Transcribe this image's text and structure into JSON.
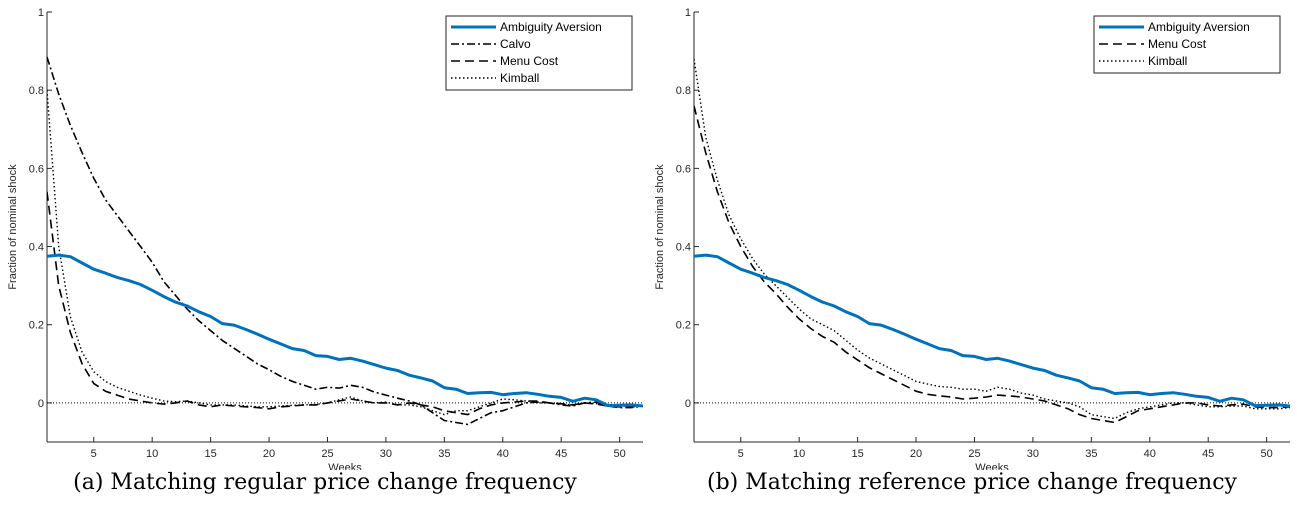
{
  "chart_data": [
    {
      "type": "line",
      "caption": "(a) Matching regular price change frequency",
      "xlabel": "Weeks",
      "ylabel": "Fraction of nominal shock",
      "xlim": [
        1,
        52
      ],
      "ylim": [
        -0.1,
        1
      ],
      "xticks": [
        5,
        10,
        15,
        20,
        25,
        30,
        35,
        40,
        45,
        50
      ],
      "yticks": [
        0,
        0.2,
        0.4,
        0.6,
        0.8,
        1
      ],
      "ytick_labels": [
        "0",
        "0.2",
        "0.4",
        "0.6",
        "0.8",
        "1"
      ],
      "zero_line": true,
      "legend_position": "top-right",
      "series": [
        {
          "name": "Ambiguity Aversion",
          "style": "solid",
          "color": "#0072BD",
          "x": [
            1,
            2,
            3,
            4,
            5,
            6,
            7,
            8,
            9,
            10,
            11,
            12,
            13,
            14,
            15,
            16,
            17,
            18,
            19,
            20,
            21,
            22,
            23,
            24,
            25,
            26,
            27,
            28,
            29,
            30,
            31,
            32,
            33,
            34,
            35,
            36,
            37,
            38,
            39,
            40,
            41,
            42,
            43,
            44,
            45,
            46,
            47,
            48,
            49,
            50,
            51,
            52
          ],
          "values": [
            0.375,
            0.378,
            0.374,
            0.358,
            0.342,
            0.332,
            0.321,
            0.313,
            0.303,
            0.288,
            0.272,
            0.258,
            0.248,
            0.233,
            0.221,
            0.203,
            0.199,
            0.188,
            0.176,
            0.163,
            0.151,
            0.139,
            0.134,
            0.121,
            0.119,
            0.111,
            0.114,
            0.107,
            0.098,
            0.089,
            0.083,
            0.071,
            0.064,
            0.056,
            0.039,
            0.035,
            0.024,
            0.026,
            0.027,
            0.021,
            0.024,
            0.026,
            0.022,
            0.017,
            0.014,
            0.004,
            0.012,
            0.008,
            -0.007,
            -0.006,
            -0.005,
            -0.008
          ]
        },
        {
          "name": "Calvo",
          "style": "dashdot",
          "color": "#000000",
          "x": [
            1,
            2,
            3,
            4,
            5,
            6,
            7,
            8,
            9,
            10,
            11,
            12,
            13,
            14,
            15,
            16,
            17,
            18,
            19,
            20,
            21,
            22,
            23,
            24,
            25,
            26,
            27,
            28,
            29,
            30,
            31,
            32,
            33,
            34,
            35,
            36,
            37,
            38,
            39,
            40,
            41,
            42,
            43,
            44,
            45,
            46,
            47,
            48,
            49,
            50,
            51,
            52
          ],
          "values": [
            0.885,
            0.79,
            0.71,
            0.64,
            0.575,
            0.52,
            0.48,
            0.44,
            0.4,
            0.36,
            0.31,
            0.275,
            0.24,
            0.21,
            0.185,
            0.16,
            0.14,
            0.12,
            0.1,
            0.085,
            0.068,
            0.055,
            0.045,
            0.035,
            0.04,
            0.038,
            0.045,
            0.04,
            0.028,
            0.02,
            0.012,
            0.005,
            -0.005,
            -0.025,
            -0.045,
            -0.05,
            -0.055,
            -0.04,
            -0.025,
            -0.02,
            -0.01,
            0.0,
            0.002,
            0.0,
            -0.005,
            -0.008,
            0.0,
            0.002,
            -0.008,
            -0.012,
            -0.012,
            -0.008
          ]
        },
        {
          "name": "Menu Cost",
          "style": "dashed",
          "color": "#000000",
          "x": [
            1,
            2,
            3,
            4,
            5,
            6,
            7,
            8,
            9,
            10,
            11,
            12,
            13,
            14,
            15,
            16,
            17,
            18,
            19,
            20,
            21,
            22,
            23,
            24,
            25,
            26,
            27,
            28,
            29,
            30,
            31,
            32,
            33,
            34,
            35,
            36,
            37,
            38,
            39,
            40,
            41,
            42,
            43,
            44,
            45,
            46,
            47,
            48,
            49,
            50,
            51,
            52
          ],
          "values": [
            0.54,
            0.3,
            0.18,
            0.1,
            0.05,
            0.03,
            0.02,
            0.01,
            0.005,
            0.0,
            -0.003,
            0.0,
            0.005,
            -0.005,
            -0.01,
            -0.005,
            -0.008,
            -0.01,
            -0.012,
            -0.015,
            -0.01,
            -0.008,
            -0.005,
            -0.005,
            0.0,
            0.005,
            0.01,
            0.005,
            0.0,
            0.0,
            -0.005,
            0.0,
            -0.005,
            -0.01,
            -0.02,
            -0.025,
            -0.03,
            -0.015,
            -0.005,
            0.0,
            0.002,
            0.005,
            0.005,
            0.0,
            -0.002,
            -0.005,
            0.0,
            -0.003,
            -0.008,
            -0.01,
            -0.01,
            -0.008
          ]
        },
        {
          "name": "Kimball",
          "style": "dotted",
          "color": "#000000",
          "x": [
            1,
            2,
            3,
            4,
            5,
            6,
            7,
            8,
            9,
            10,
            11,
            12,
            13,
            14,
            15,
            16,
            17,
            18,
            19,
            20,
            21,
            22,
            23,
            24,
            25,
            26,
            27,
            28,
            29,
            30,
            31,
            32,
            33,
            34,
            35,
            36,
            37,
            38,
            39,
            40,
            41,
            42,
            43,
            44,
            45,
            46,
            47,
            48,
            49,
            50,
            51,
            52
          ],
          "values": [
            0.8,
            0.4,
            0.22,
            0.13,
            0.08,
            0.055,
            0.04,
            0.03,
            0.02,
            0.012,
            0.005,
            0.003,
            0.005,
            0.0,
            -0.005,
            -0.005,
            -0.005,
            -0.008,
            -0.01,
            -0.01,
            -0.008,
            -0.006,
            -0.005,
            -0.004,
            0.0,
            0.008,
            0.015,
            0.005,
            0.0,
            0.002,
            -0.005,
            -0.005,
            -0.01,
            -0.02,
            -0.03,
            -0.02,
            -0.02,
            -0.01,
            0.0,
            0.01,
            0.008,
            0.005,
            0.0,
            0.0,
            -0.003,
            -0.005,
            0.0,
            -0.002,
            -0.006,
            -0.008,
            -0.008,
            -0.005
          ]
        }
      ]
    },
    {
      "type": "line",
      "caption": "(b) Matching reference price change frequency",
      "xlabel": "Weeks",
      "ylabel": "Fraction of nominal shock",
      "xlim": [
        1,
        52
      ],
      "ylim": [
        -0.1,
        1
      ],
      "xticks": [
        5,
        10,
        15,
        20,
        25,
        30,
        35,
        40,
        45,
        50
      ],
      "yticks": [
        0,
        0.2,
        0.4,
        0.6,
        0.8,
        1
      ],
      "ytick_labels": [
        "0",
        "0.2",
        "0.4",
        "0.6",
        "0.8",
        "1"
      ],
      "zero_line": true,
      "legend_position": "top-right",
      "series": [
        {
          "name": "Ambiguity Aversion",
          "style": "solid",
          "color": "#0072BD",
          "x": [
            1,
            2,
            3,
            4,
            5,
            6,
            7,
            8,
            9,
            10,
            11,
            12,
            13,
            14,
            15,
            16,
            17,
            18,
            19,
            20,
            21,
            22,
            23,
            24,
            25,
            26,
            27,
            28,
            29,
            30,
            31,
            32,
            33,
            34,
            35,
            36,
            37,
            38,
            39,
            40,
            41,
            42,
            43,
            44,
            45,
            46,
            47,
            48,
            49,
            50,
            51,
            52
          ],
          "values": [
            0.375,
            0.378,
            0.374,
            0.358,
            0.342,
            0.332,
            0.321,
            0.313,
            0.303,
            0.288,
            0.272,
            0.258,
            0.248,
            0.233,
            0.221,
            0.203,
            0.199,
            0.188,
            0.176,
            0.163,
            0.151,
            0.139,
            0.134,
            0.121,
            0.119,
            0.111,
            0.114,
            0.107,
            0.098,
            0.089,
            0.083,
            0.071,
            0.064,
            0.056,
            0.039,
            0.035,
            0.024,
            0.026,
            0.027,
            0.021,
            0.024,
            0.026,
            0.022,
            0.017,
            0.014,
            0.004,
            0.012,
            0.008,
            -0.007,
            -0.006,
            -0.005,
            -0.008
          ]
        },
        {
          "name": "Menu Cost",
          "style": "dashed",
          "color": "#000000",
          "x": [
            1,
            2,
            3,
            4,
            5,
            6,
            7,
            8,
            9,
            10,
            11,
            12,
            13,
            14,
            15,
            16,
            17,
            18,
            19,
            20,
            21,
            22,
            23,
            24,
            25,
            26,
            27,
            28,
            29,
            30,
            31,
            32,
            33,
            34,
            35,
            36,
            37,
            38,
            39,
            40,
            41,
            42,
            43,
            44,
            45,
            46,
            47,
            48,
            49,
            50,
            51,
            52
          ],
          "values": [
            0.76,
            0.64,
            0.54,
            0.46,
            0.4,
            0.35,
            0.31,
            0.28,
            0.245,
            0.215,
            0.19,
            0.17,
            0.155,
            0.13,
            0.11,
            0.09,
            0.075,
            0.06,
            0.045,
            0.03,
            0.022,
            0.018,
            0.015,
            0.01,
            0.012,
            0.015,
            0.02,
            0.018,
            0.015,
            0.01,
            0.005,
            -0.005,
            -0.015,
            -0.03,
            -0.04,
            -0.045,
            -0.05,
            -0.035,
            -0.02,
            -0.015,
            -0.01,
            -0.005,
            0.0,
            0.0,
            -0.005,
            -0.008,
            -0.005,
            -0.003,
            -0.01,
            -0.012,
            -0.012,
            -0.01
          ]
        },
        {
          "name": "Kimball",
          "style": "dotted",
          "color": "#000000",
          "x": [
            1,
            2,
            3,
            4,
            5,
            6,
            7,
            8,
            9,
            10,
            11,
            12,
            13,
            14,
            15,
            16,
            17,
            18,
            19,
            20,
            21,
            22,
            23,
            24,
            25,
            26,
            27,
            28,
            29,
            30,
            31,
            32,
            33,
            34,
            35,
            36,
            37,
            38,
            39,
            40,
            41,
            42,
            43,
            44,
            45,
            46,
            47,
            48,
            49,
            50,
            51,
            52
          ],
          "values": [
            0.88,
            0.68,
            0.57,
            0.48,
            0.42,
            0.37,
            0.33,
            0.3,
            0.27,
            0.24,
            0.215,
            0.2,
            0.185,
            0.16,
            0.135,
            0.115,
            0.1,
            0.085,
            0.07,
            0.055,
            0.048,
            0.042,
            0.04,
            0.035,
            0.035,
            0.03,
            0.04,
            0.035,
            0.025,
            0.02,
            0.01,
            0.005,
            0.0,
            -0.01,
            -0.03,
            -0.035,
            -0.04,
            -0.025,
            -0.015,
            -0.01,
            -0.005,
            0.0,
            0.0,
            -0.005,
            -0.01,
            -0.01,
            -0.008,
            -0.008,
            -0.015,
            -0.015,
            -0.015,
            -0.012
          ]
        }
      ]
    }
  ]
}
